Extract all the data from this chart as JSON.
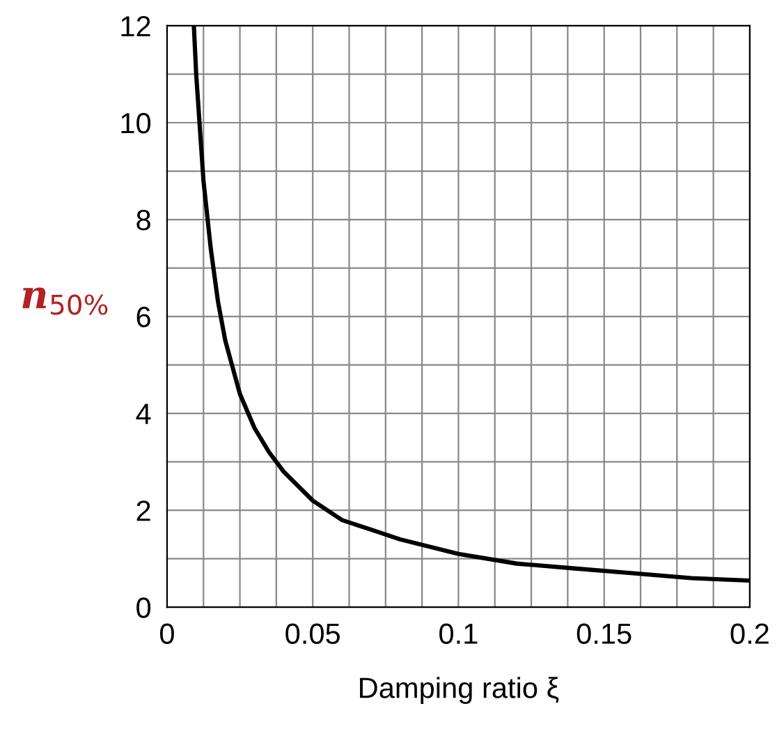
{
  "chart_data": {
    "type": "line",
    "xlabel": "Damping ratio ξ",
    "ylabel": "n$_{50%}$",
    "x": [
      0.0092,
      0.01,
      0.0125,
      0.015,
      0.0175,
      0.02,
      0.025,
      0.03,
      0.035,
      0.04,
      0.05,
      0.06,
      0.07,
      0.08,
      0.1,
      0.12,
      0.14,
      0.16,
      0.18,
      0.2
    ],
    "series": [
      {
        "color": "#000000",
        "values": [
          12,
          11.0,
          8.8,
          7.4,
          6.3,
          5.5,
          4.4,
          3.7,
          3.2,
          2.8,
          2.2,
          1.8,
          1.6,
          1.4,
          1.1,
          0.9,
          0.8,
          0.7,
          0.6,
          0.55
        ]
      }
    ],
    "xlim": [
      0,
      0.2
    ],
    "ylim": [
      0,
      12
    ],
    "xticks": [
      0,
      {
        "value": 0.0125,
        "label": null
      },
      {
        "value": 0.025,
        "label": null
      },
      {
        "value": 0.0375,
        "label": null
      },
      0.05,
      {
        "value": 0.0625,
        "label": null
      },
      {
        "value": 0.075,
        "label": null
      },
      {
        "value": 0.0875,
        "label": null
      },
      0.1,
      {
        "value": 0.1125,
        "label": null
      },
      {
        "value": 0.125,
        "label": null
      },
      {
        "value": 0.1375,
        "label": null
      },
      0.15,
      {
        "value": 0.1625,
        "label": null
      },
      {
        "value": 0.175,
        "label": null
      },
      {
        "value": 0.1875,
        "label": null
      },
      0.2
    ],
    "yticks": [
      0,
      {
        "value": 1,
        "label": null
      },
      2,
      {
        "value": 3,
        "label": null
      },
      4,
      {
        "value": 5,
        "label": null
      },
      6,
      {
        "value": 7,
        "label": null
      },
      8,
      {
        "value": 9,
        "label": null
      },
      10,
      {
        "value": 11,
        "label": null
      },
      12
    ],
    "grid": true,
    "marker": "none",
    "line_style": "solid"
  }
}
